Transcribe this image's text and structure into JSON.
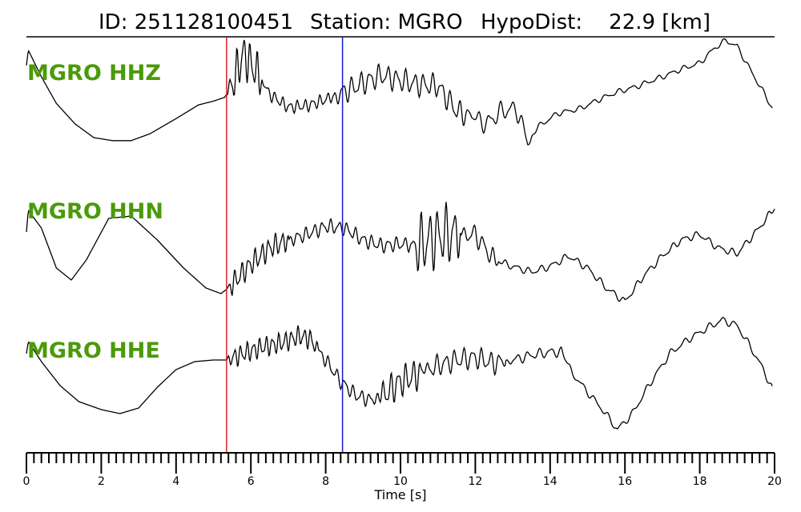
{
  "header": {
    "id_text": "ID: 251128100451",
    "station_text": "Station: MGRO",
    "hypodist_text": "HypoDist:    22.9 [km]"
  },
  "chart_data": {
    "type": "line",
    "xlabel": "Time [s]",
    "xlim": [
      0,
      20
    ],
    "x_major_ticks": [
      0,
      2,
      4,
      6,
      8,
      10,
      12,
      14,
      16,
      18,
      20
    ],
    "x_minor_step": 0.2,
    "grid": false,
    "picks": [
      {
        "phase": "P",
        "time": 5.35,
        "color": "#e02020"
      },
      {
        "phase": "S",
        "time": 8.45,
        "color": "#1020d0"
      }
    ],
    "label_color": "#4a9a0a",
    "series": [
      {
        "name": "MGRO HHZ",
        "amplitude_norm": [
          [
            0.0,
            0.35
          ],
          [
            0.05,
            0.55
          ],
          [
            0.4,
            0.2
          ],
          [
            0.8,
            -0.15
          ],
          [
            1.3,
            -0.42
          ],
          [
            1.8,
            -0.6
          ],
          [
            2.3,
            -0.64
          ],
          [
            2.8,
            -0.64
          ],
          [
            3.3,
            -0.55
          ],
          [
            4.0,
            -0.35
          ],
          [
            4.6,
            -0.17
          ],
          [
            5.0,
            -0.12
          ],
          [
            5.3,
            -0.07
          ],
          [
            5.5,
            0.1
          ],
          [
            5.8,
            0.5
          ],
          [
            6.1,
            0.3
          ],
          [
            6.5,
            -0.03
          ],
          [
            7.0,
            -0.2
          ],
          [
            7.5,
            -0.18
          ],
          [
            8.0,
            -0.1
          ],
          [
            8.5,
            0.0
          ],
          [
            9.0,
            0.12
          ],
          [
            9.5,
            0.22
          ],
          [
            10.0,
            0.15
          ],
          [
            10.5,
            0.1
          ],
          [
            11.0,
            0.08
          ],
          [
            11.5,
            -0.25
          ],
          [
            12.0,
            -0.35
          ],
          [
            12.3,
            -0.42
          ],
          [
            12.7,
            -0.25
          ],
          [
            13.1,
            -0.22
          ],
          [
            13.4,
            -0.65
          ],
          [
            13.7,
            -0.45
          ],
          [
            14.2,
            -0.28
          ],
          [
            14.8,
            -0.22
          ],
          [
            15.3,
            -0.1
          ],
          [
            15.8,
            0.0
          ],
          [
            16.3,
            0.07
          ],
          [
            17.0,
            0.2
          ],
          [
            17.5,
            0.3
          ],
          [
            18.0,
            0.38
          ],
          [
            18.4,
            0.58
          ],
          [
            18.7,
            0.68
          ],
          [
            19.0,
            0.6
          ],
          [
            19.4,
            0.25
          ],
          [
            19.7,
            0.0
          ],
          [
            19.95,
            -0.22
          ]
        ],
        "oscillations": [
          [
            5.35,
            6.3,
            0.32,
            0.18
          ],
          [
            6.3,
            8.2,
            0.09,
            0.2
          ],
          [
            8.2,
            11.9,
            0.17,
            0.24
          ],
          [
            11.9,
            13.5,
            0.14,
            0.3
          ],
          [
            13.5,
            20.0,
            0.04,
            0.35
          ]
        ]
      },
      {
        "name": "MGRO HHN",
        "amplitude_norm": [
          [
            0.0,
            0.15
          ],
          [
            0.05,
            0.42
          ],
          [
            0.4,
            0.2
          ],
          [
            0.8,
            -0.3
          ],
          [
            1.2,
            -0.45
          ],
          [
            1.6,
            -0.2
          ],
          [
            2.2,
            0.32
          ],
          [
            2.8,
            0.35
          ],
          [
            3.5,
            0.05
          ],
          [
            4.2,
            -0.3
          ],
          [
            4.8,
            -0.55
          ],
          [
            5.2,
            -0.62
          ],
          [
            5.4,
            -0.55
          ],
          [
            6.0,
            -0.25
          ],
          [
            6.5,
            -0.05
          ],
          [
            7.0,
            0.05
          ],
          [
            7.5,
            0.12
          ],
          [
            8.0,
            0.22
          ],
          [
            8.5,
            0.2
          ],
          [
            9.0,
            0.05
          ],
          [
            9.5,
            -0.02
          ],
          [
            10.0,
            0.0
          ],
          [
            10.5,
            -0.02
          ],
          [
            11.0,
            0.1
          ],
          [
            11.5,
            0.12
          ],
          [
            12.0,
            0.12
          ],
          [
            12.5,
            -0.2
          ],
          [
            13.0,
            -0.28
          ],
          [
            13.5,
            -0.35
          ],
          [
            14.0,
            -0.28
          ],
          [
            14.5,
            -0.15
          ],
          [
            15.0,
            -0.3
          ],
          [
            15.5,
            -0.55
          ],
          [
            16.0,
            -0.72
          ],
          [
            16.5,
            -0.4
          ],
          [
            17.0,
            -0.15
          ],
          [
            17.5,
            0.05
          ],
          [
            18.0,
            0.12
          ],
          [
            18.5,
            -0.05
          ],
          [
            19.0,
            -0.12
          ],
          [
            19.5,
            0.15
          ],
          [
            20.0,
            0.45
          ]
        ],
        "oscillations": [
          [
            5.35,
            7.0,
            0.16,
            0.18
          ],
          [
            7.0,
            10.3,
            0.1,
            0.22
          ],
          [
            10.3,
            11.6,
            0.42,
            0.22
          ],
          [
            11.6,
            12.6,
            0.14,
            0.26
          ],
          [
            12.6,
            20.0,
            0.05,
            0.32
          ]
        ]
      },
      {
        "name": "MGRO HHE",
        "amplitude_norm": [
          [
            0.0,
            0.2
          ],
          [
            0.05,
            0.35
          ],
          [
            0.4,
            0.1
          ],
          [
            0.9,
            -0.2
          ],
          [
            1.4,
            -0.4
          ],
          [
            2.0,
            -0.5
          ],
          [
            2.5,
            -0.55
          ],
          [
            3.0,
            -0.48
          ],
          [
            3.5,
            -0.22
          ],
          [
            4.0,
            0.0
          ],
          [
            4.5,
            0.1
          ],
          [
            5.0,
            0.12
          ],
          [
            5.35,
            0.12
          ],
          [
            5.8,
            0.2
          ],
          [
            6.3,
            0.28
          ],
          [
            6.8,
            0.33
          ],
          [
            7.3,
            0.42
          ],
          [
            7.6,
            0.38
          ],
          [
            8.0,
            0.12
          ],
          [
            8.4,
            -0.15
          ],
          [
            8.8,
            -0.32
          ],
          [
            9.2,
            -0.38
          ],
          [
            9.6,
            -0.3
          ],
          [
            10.0,
            -0.15
          ],
          [
            10.5,
            -0.05
          ],
          [
            11.0,
            0.05
          ],
          [
            11.5,
            0.12
          ],
          [
            12.0,
            0.15
          ],
          [
            12.5,
            0.08
          ],
          [
            13.0,
            0.12
          ],
          [
            13.5,
            0.18
          ],
          [
            14.0,
            0.22
          ],
          [
            14.3,
            0.22
          ],
          [
            14.6,
            -0.05
          ],
          [
            15.0,
            -0.28
          ],
          [
            15.4,
            -0.5
          ],
          [
            15.8,
            -0.75
          ],
          [
            16.2,
            -0.55
          ],
          [
            16.7,
            -0.15
          ],
          [
            17.2,
            0.2
          ],
          [
            17.7,
            0.38
          ],
          [
            18.2,
            0.52
          ],
          [
            18.6,
            0.62
          ],
          [
            19.0,
            0.55
          ],
          [
            19.4,
            0.25
          ],
          [
            19.7,
            0.0
          ],
          [
            19.95,
            -0.25
          ]
        ],
        "oscillations": [
          [
            5.35,
            7.8,
            0.14,
            0.17
          ],
          [
            7.8,
            9.4,
            0.1,
            0.22
          ],
          [
            9.4,
            10.6,
            0.22,
            0.2
          ],
          [
            10.6,
            12.8,
            0.15,
            0.24
          ],
          [
            12.8,
            14.4,
            0.07,
            0.3
          ],
          [
            14.4,
            20.0,
            0.05,
            0.34
          ]
        ]
      }
    ]
  }
}
